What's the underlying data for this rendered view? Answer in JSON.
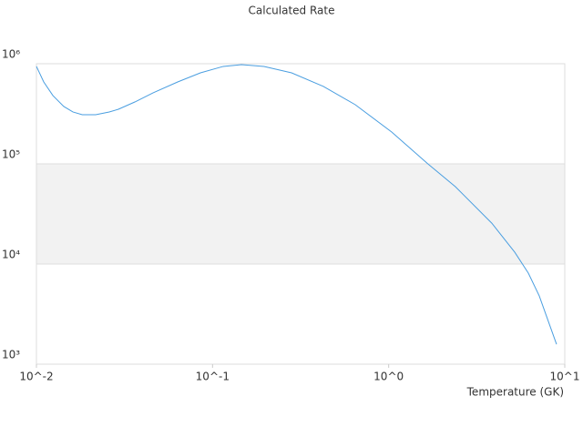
{
  "chart_data": {
    "type": "line",
    "title": "Calculated Rate",
    "x_label": "Temperature (GK)",
    "x": [
      0.01,
      0.011,
      0.0124,
      0.0143,
      0.0161,
      0.0182,
      0.0217,
      0.0259,
      0.0292,
      0.0362,
      0.046,
      0.0634,
      0.0854,
      0.115,
      0.146,
      0.196,
      0.281,
      0.426,
      0.646,
      1.04,
      1.67,
      2.39,
      3.85,
      5.2,
      6.21,
      7.16,
      8.98
    ],
    "series": [
      {
        "color": "#4a9ee0",
        "values": [
          940000,
          658000,
          481000,
          374000,
          330000,
          310000,
          310000,
          330000,
          351000,
          415000,
          512000,
          658000,
          811000,
          940000,
          979000,
          940000,
          811000,
          593000,
          390000,
          208000,
          100000,
          59300,
          25600,
          13100,
          8110,
          4810,
          1580
        ]
      }
    ],
    "xlim": [
      0.01,
      10
    ],
    "ylim": [
      1000,
      1000000
    ],
    "xlog": true,
    "ylog": true,
    "xticks": [
      {
        "value": 0.01,
        "label": "10^-2"
      },
      {
        "value": 0.1,
        "label": "10^-1"
      },
      {
        "value": 1,
        "label": "10^0"
      },
      {
        "value": 10,
        "label": "10^1"
      }
    ],
    "yticks": [
      {
        "value": 1000,
        "label": "10³"
      },
      {
        "value": 10000,
        "label": "10⁴"
      },
      {
        "value": 100000,
        "label": "10⁵"
      },
      {
        "value": 1000000,
        "label": "10⁶"
      }
    ],
    "grid": true
  }
}
